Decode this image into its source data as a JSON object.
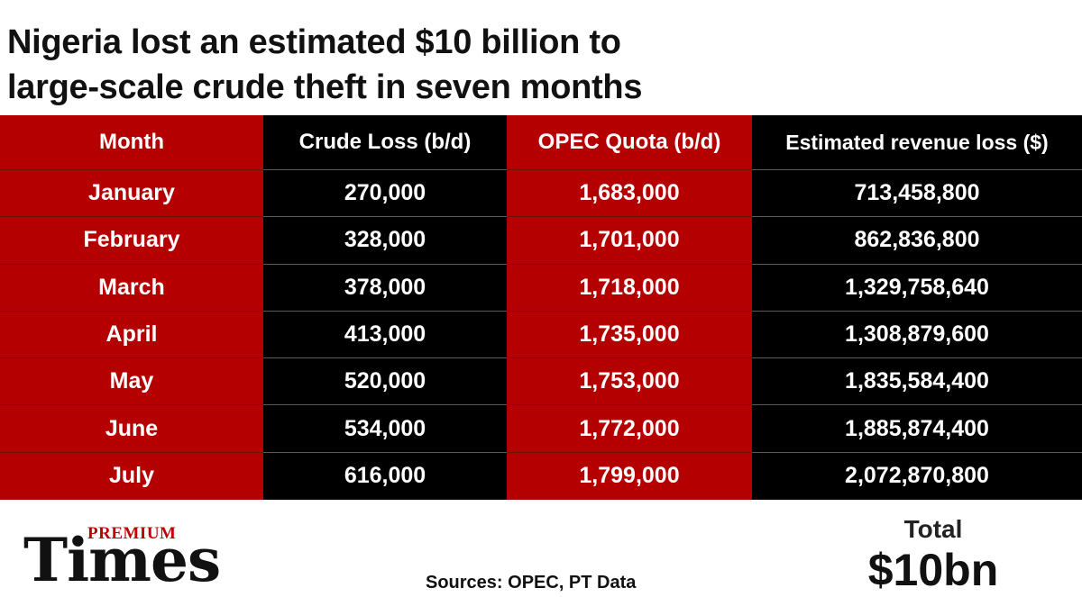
{
  "title_lines": [
    "Nigeria lost an estimated $10 billion to",
    "large-scale crude theft in seven months"
  ],
  "colors": {
    "accent_red": "#b40000",
    "black": "#000000",
    "text_on_dark": "#ffffff"
  },
  "chart_data": {
    "type": "table",
    "title": "Nigeria lost an estimated $10 billion to large-scale crude theft in seven months",
    "columns": [
      "Month",
      "Crude Loss (b/d)",
      "OPEC Quota (b/d)",
      "Estimated revenue loss ($)"
    ],
    "rows": [
      [
        "January",
        "270,000",
        "1,683,000",
        "713,458,800"
      ],
      [
        "February",
        "328,000",
        "1,701,000",
        "862,836,800"
      ],
      [
        "March",
        "378,000",
        "1,718,000",
        "1,329,758,640"
      ],
      [
        "April",
        "413,000",
        "1,735,000",
        "1,308,879,600"
      ],
      [
        "May",
        "520,000",
        "1,753,000",
        "1,835,584,400"
      ],
      [
        "June",
        "534,000",
        "1,772,000",
        "1,885,874,400"
      ],
      [
        "July",
        "616,000",
        "1,799,000",
        "2,072,870,800"
      ]
    ]
  },
  "footer": {
    "logo_top": "PREMIUM",
    "logo_main": "Times",
    "sources": "Sources: OPEC, PT Data",
    "total_label": "Total",
    "total_value": "$10bn"
  }
}
